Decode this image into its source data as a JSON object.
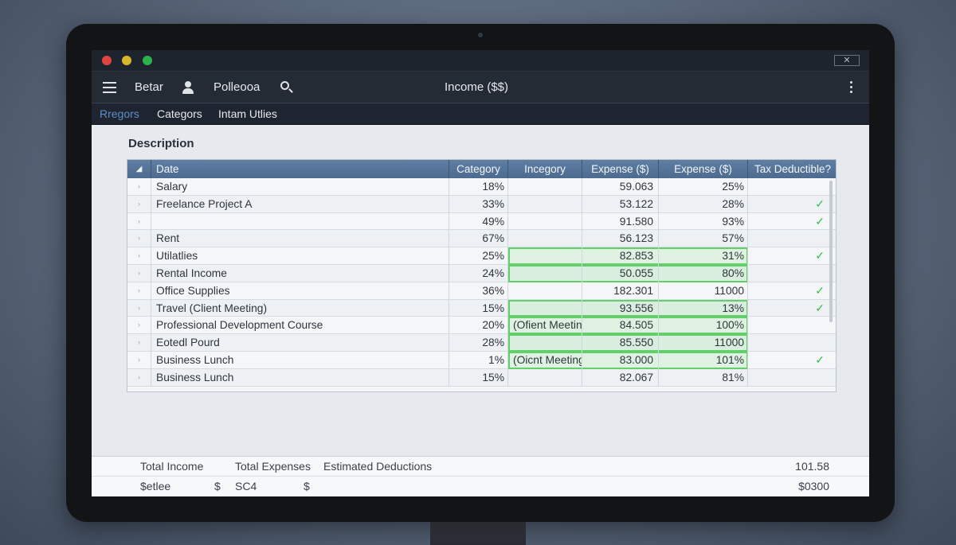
{
  "window": {
    "close_glyph": "✕"
  },
  "toolbar": {
    "item1": "Betar",
    "item2": "Polleooa",
    "title": "Income ($$)"
  },
  "tabs": [
    {
      "label": "Rregors",
      "active": true
    },
    {
      "label": "Categors",
      "active": false
    },
    {
      "label": "Intam Utlies",
      "active": false
    }
  ],
  "main": {
    "section_title": "Description"
  },
  "table": {
    "sort_glyph": "◢",
    "headers": [
      "Date",
      "Category",
      "Incegory",
      "Expense ($)",
      "Expense ($)",
      "Tax Deductible?"
    ],
    "rows": [
      {
        "desc": "Salary",
        "cat": "18%",
        "inc": "",
        "exp1": "59.063",
        "exp2": "25%",
        "tax": "",
        "highlight": false
      },
      {
        "desc": "Freelance Project A",
        "cat": "33%",
        "inc": "",
        "exp1": "53.122",
        "exp2": "28%",
        "tax": "✓",
        "highlight": false
      },
      {
        "desc": "",
        "cat": "49%",
        "inc": "",
        "exp1": "91.580",
        "exp2": "93%",
        "tax": "✓",
        "highlight": false
      },
      {
        "desc": "Rent",
        "cat": "67%",
        "inc": "",
        "exp1": "56.123",
        "exp2": "57%",
        "tax": "",
        "highlight": false
      },
      {
        "desc": "Utilatlies",
        "cat": "25%",
        "inc": "",
        "exp1": "82.853",
        "exp2": "31%",
        "tax": "✓",
        "highlight": true
      },
      {
        "desc": "Rental Income",
        "cat": "24%",
        "inc": "",
        "exp1": "50.055",
        "exp2": "80%",
        "tax": "",
        "highlight": true
      },
      {
        "desc": "Office Supplies",
        "cat": "36%",
        "inc": "",
        "exp1": "182.301",
        "exp2": "11000",
        "tax": "✓",
        "highlight": false
      },
      {
        "desc": "Travel (Client Meeting)",
        "cat": "15%",
        "inc": "",
        "exp1": "93.556",
        "exp2": "13%",
        "tax": "✓",
        "highlight": true
      },
      {
        "desc": "Professional Development Course",
        "cat": "20%",
        "inc": "(Ofient Meeting)",
        "exp1": "84.505",
        "exp2": "100%",
        "tax": "",
        "highlight": true
      },
      {
        "desc": "Eotedl Pourd",
        "cat": "28%",
        "inc": "",
        "exp1": "85.550",
        "exp2": "11000",
        "tax": "",
        "highlight": true
      },
      {
        "desc": "Business Lunch",
        "cat": "1%",
        "inc": "(Oicnt Meeting)",
        "exp1": "83.000",
        "exp2": "101%",
        "tax": "✓",
        "highlight": true
      },
      {
        "desc": "Business Lunch",
        "cat": "15%",
        "inc": "",
        "exp1": "82.067",
        "exp2": "81%",
        "tax": "",
        "highlight": false
      }
    ]
  },
  "footer": {
    "label_income": "Total Income",
    "label_expenses": "Total Expenses",
    "label_deductions": "Estimated Deductions",
    "value_right_1": "101.58",
    "value_a": "$etlee",
    "currency_1": "$",
    "value_b": "SC4",
    "currency_2": "$",
    "value_right_2": "$0300"
  }
}
